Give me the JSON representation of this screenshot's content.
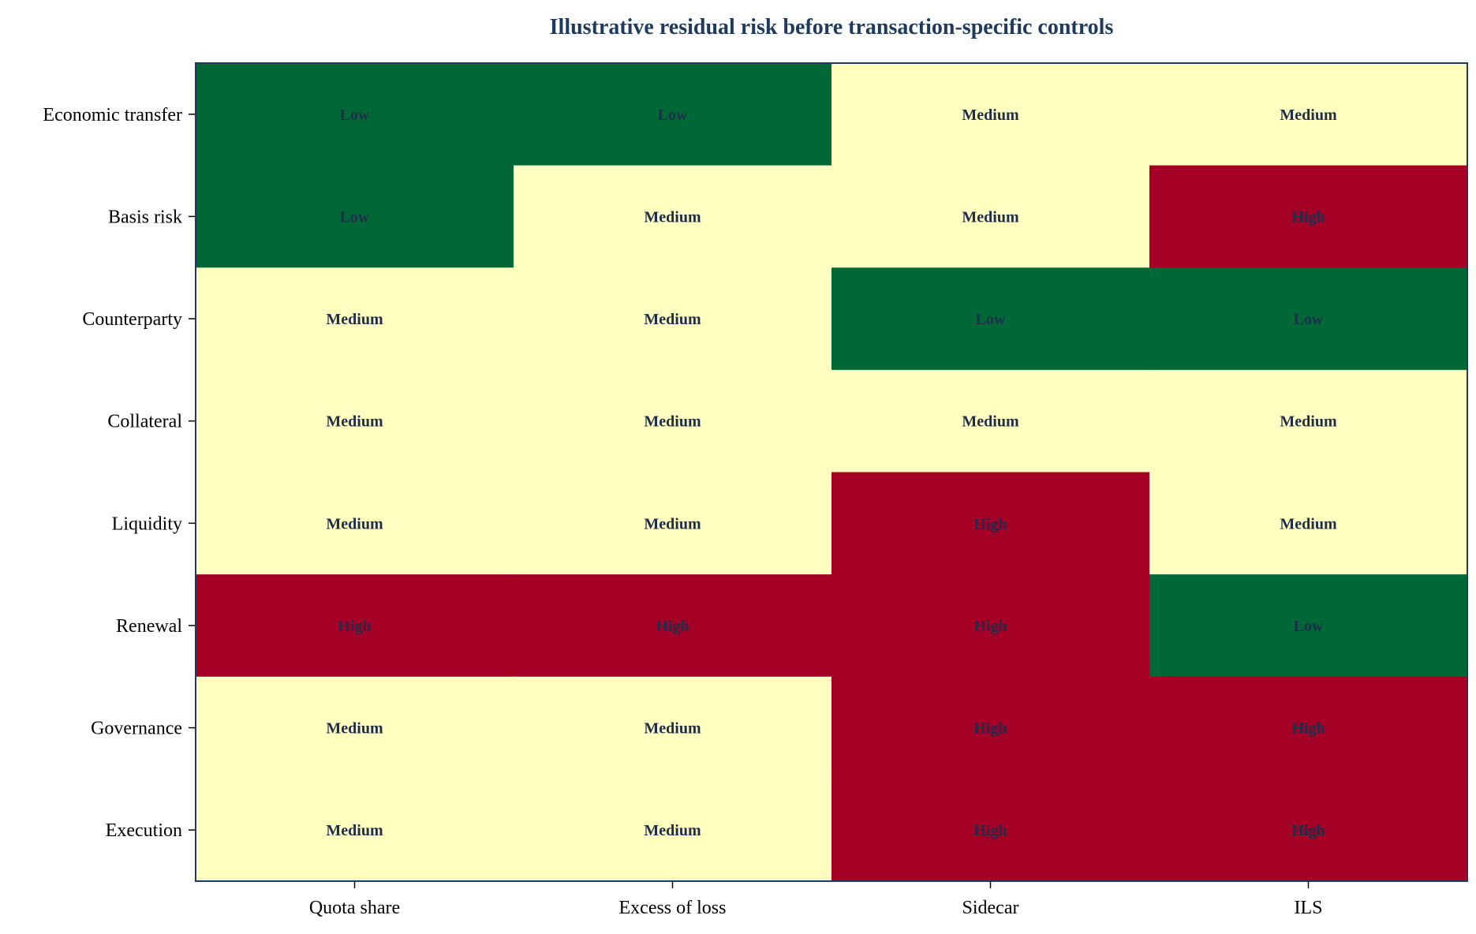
{
  "chart_data": {
    "type": "heatmap",
    "title": "Illustrative residual risk before transaction-specific controls",
    "xlabel": "",
    "ylabel": "",
    "x_categories": [
      "Quota share",
      "Excess of loss",
      "Sidecar",
      "ILS"
    ],
    "y_categories": [
      "Economic transfer",
      "Basis risk",
      "Counterparty",
      "Collateral",
      "Liquidity",
      "Renewal",
      "Governance",
      "Execution"
    ],
    "levels": [
      "Low",
      "Medium",
      "High"
    ],
    "cells": [
      [
        "Low",
        "Low",
        "Medium",
        "Medium"
      ],
      [
        "Low",
        "Medium",
        "Medium",
        "High"
      ],
      [
        "Medium",
        "Medium",
        "Low",
        "Low"
      ],
      [
        "Medium",
        "Medium",
        "Medium",
        "Medium"
      ],
      [
        "Medium",
        "Medium",
        "High",
        "Medium"
      ],
      [
        "High",
        "High",
        "High",
        "Low"
      ],
      [
        "Medium",
        "Medium",
        "High",
        "High"
      ],
      [
        "Medium",
        "Medium",
        "High",
        "High"
      ]
    ],
    "grid": false,
    "legend": "none",
    "colors": {
      "Low": "#006837",
      "Medium": "#ffffbf",
      "High": "#a50026",
      "title": "#1f3a5f",
      "cell_text": "#1f2d4d",
      "frame": "#1f3a5f"
    }
  }
}
